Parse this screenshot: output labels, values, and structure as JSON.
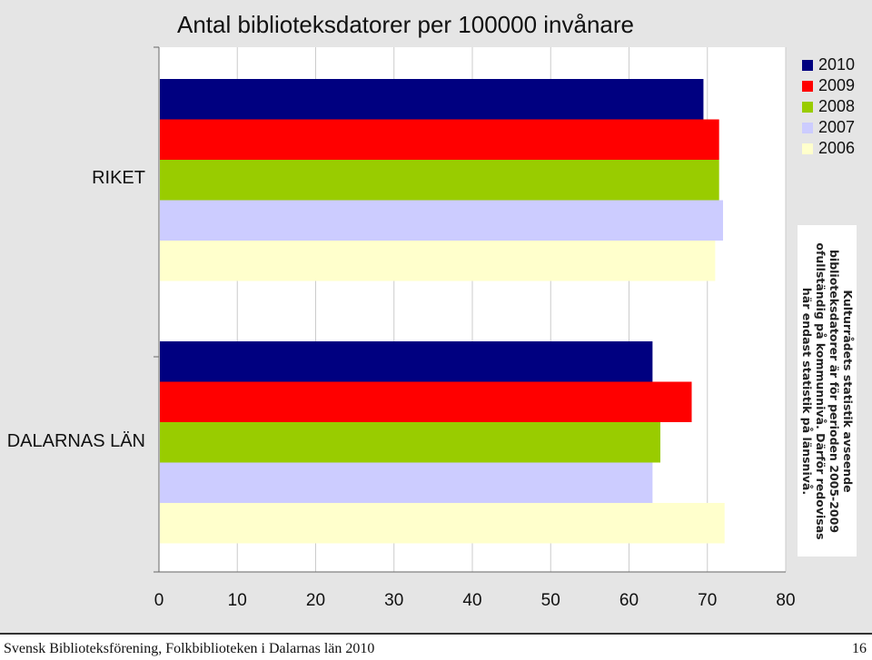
{
  "chart_data": {
    "type": "bar",
    "orientation": "horizontal",
    "title": "Antal biblioteksdatorer per 100000 invånare",
    "categories": [
      "RIKET",
      "DALARNAS LÄN"
    ],
    "series": [
      {
        "name": "2010",
        "color": "#000080",
        "values": [
          69.5,
          63
        ]
      },
      {
        "name": "2009",
        "color": "#ff0000",
        "values": [
          71.5,
          68
        ]
      },
      {
        "name": "2008",
        "color": "#99cc00",
        "values": [
          71.5,
          64
        ]
      },
      {
        "name": "2007",
        "color": "#ccccff",
        "values": [
          72,
          63
        ]
      },
      {
        "name": "2006",
        "color": "#ffffcc",
        "values": [
          71,
          72.2
        ]
      }
    ],
    "xlim": [
      0,
      80
    ],
    "xticks": [
      "0",
      "10",
      "20",
      "30",
      "40",
      "50",
      "60",
      "70",
      "80"
    ],
    "grid": "vertical",
    "legend_position": "top-right",
    "annotation": "Kulturrådets statistik avseende biblioteksdatorer är för perioden 2005-2009 ofullständig på kommunnivå. Därför redovisas här endast statistik på länsnivå."
  },
  "footer": {
    "text": "Svensk Biblioteksförening, Folkbiblioteken i Dalarnas län 2010",
    "page": "16"
  }
}
